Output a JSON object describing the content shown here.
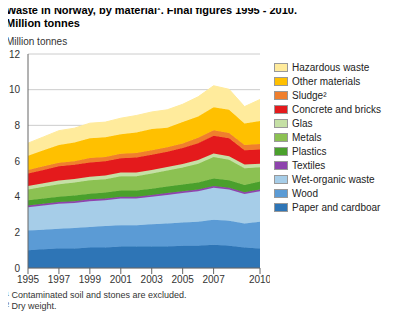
{
  "chart_data": {
    "type": "area",
    "stacked": true,
    "title": "Waste in Norway, by material¹. Final figures 1995 - 2010.",
    "subtitle": "Million tonnes",
    "y_label": "Million tonnes",
    "footnotes": [
      "¹ Contaminated soil and stones are excluded.",
      "² Dry weight."
    ],
    "grid": true,
    "legend": "right",
    "x": [
      1995,
      1996,
      1997,
      1998,
      1999,
      2000,
      2001,
      2002,
      2003,
      2004,
      2005,
      2006,
      2007,
      2008,
      2009,
      2010
    ],
    "xlim": [
      1995,
      2010
    ],
    "xticks": [
      1995,
      1997,
      1999,
      2001,
      2003,
      2005,
      2007,
      2010
    ],
    "ylim": [
      0,
      12
    ],
    "yticks": [
      0,
      2,
      4,
      6,
      8,
      10,
      12
    ],
    "series": [
      {
        "name": "Hazardous waste",
        "color": "#ffeb9c",
        "values": [
          0.7,
          0.75,
          0.8,
          0.8,
          0.85,
          0.85,
          0.9,
          0.95,
          0.95,
          1.0,
          1.0,
          1.1,
          1.2,
          1.15,
          0.95,
          1.2
        ]
      },
      {
        "name": "Other materials",
        "color": "#ffc000",
        "values": [
          0.8,
          0.9,
          1.0,
          1.05,
          1.1,
          1.1,
          1.1,
          1.15,
          1.2,
          1.1,
          1.2,
          1.2,
          1.3,
          1.3,
          1.2,
          1.3
        ]
      },
      {
        "name": "Sludge²",
        "color": "#f07f2d",
        "values": [
          0.2,
          0.2,
          0.2,
          0.2,
          0.25,
          0.25,
          0.25,
          0.25,
          0.25,
          0.25,
          0.25,
          0.3,
          0.3,
          0.3,
          0.3,
          0.3
        ]
      },
      {
        "name": "Concrete and bricks",
        "color": "#e41a1c",
        "values": [
          0.7,
          0.75,
          0.8,
          0.8,
          0.8,
          0.8,
          0.8,
          0.85,
          0.85,
          0.85,
          0.9,
          0.95,
          1.0,
          1.0,
          0.8,
          0.8
        ]
      },
      {
        "name": "Glas",
        "color": "#c5e0a5",
        "values": [
          0.2,
          0.2,
          0.2,
          0.2,
          0.2,
          0.2,
          0.2,
          0.2,
          0.2,
          0.2,
          0.2,
          0.2,
          0.2,
          0.2,
          0.2,
          0.2
        ]
      },
      {
        "name": "Metals",
        "color": "#8cc152",
        "values": [
          0.6,
          0.65,
          0.7,
          0.72,
          0.75,
          0.75,
          0.8,
          0.8,
          0.85,
          0.9,
          0.95,
          1.05,
          1.2,
          1.15,
          0.95,
          0.8
        ]
      },
      {
        "name": "Plastics",
        "color": "#4aa02c",
        "values": [
          0.3,
          0.3,
          0.3,
          0.32,
          0.32,
          0.33,
          0.35,
          0.35,
          0.35,
          0.37,
          0.38,
          0.4,
          0.42,
          0.42,
          0.4,
          0.45
        ]
      },
      {
        "name": "Textiles",
        "color": "#8e44ad",
        "values": [
          0.1,
          0.1,
          0.1,
          0.1,
          0.1,
          0.1,
          0.1,
          0.1,
          0.1,
          0.1,
          0.1,
          0.1,
          0.1,
          0.1,
          0.1,
          0.1
        ]
      },
      {
        "name": "Wet-organic waste",
        "color": "#a6cde8",
        "values": [
          1.3,
          1.35,
          1.4,
          1.4,
          1.45,
          1.45,
          1.5,
          1.5,
          1.55,
          1.6,
          1.65,
          1.7,
          1.8,
          1.75,
          1.65,
          1.7
        ]
      },
      {
        "name": "Wood",
        "color": "#5b9bd5",
        "values": [
          1.1,
          1.1,
          1.1,
          1.15,
          1.15,
          1.2,
          1.2,
          1.2,
          1.25,
          1.3,
          1.3,
          1.35,
          1.4,
          1.4,
          1.35,
          1.5
        ]
      },
      {
        "name": "Paper and cardboar",
        "color": "#2e75b6",
        "values": [
          1.0,
          1.05,
          1.1,
          1.1,
          1.15,
          1.15,
          1.2,
          1.2,
          1.2,
          1.2,
          1.25,
          1.25,
          1.3,
          1.25,
          1.15,
          1.1
        ]
      }
    ]
  }
}
